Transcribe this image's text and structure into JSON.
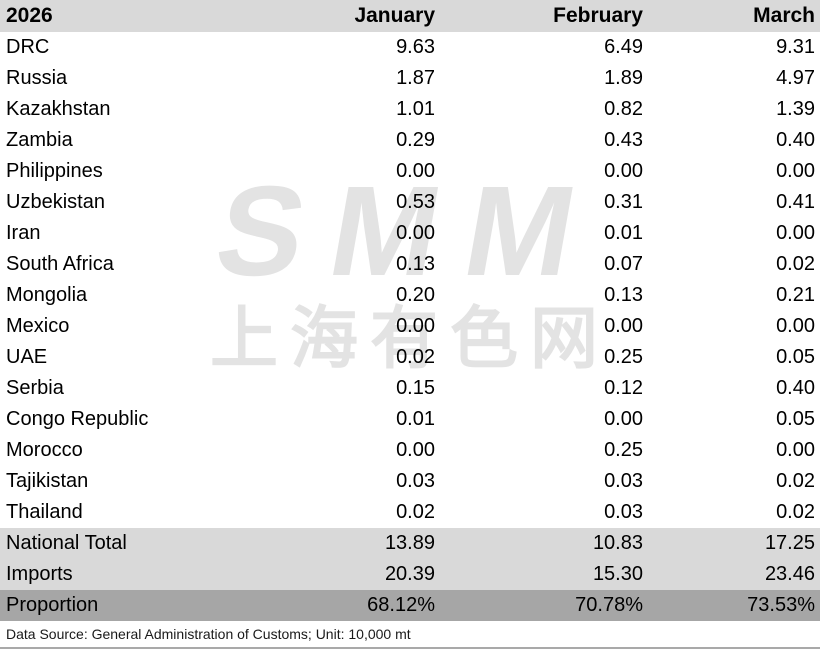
{
  "table": {
    "year": "2026",
    "columns": [
      "January",
      "February",
      "March"
    ],
    "rows": [
      {
        "label": "DRC",
        "values": [
          "9.63",
          "6.49",
          "9.31"
        ],
        "kind": "data"
      },
      {
        "label": "Russia",
        "values": [
          "1.87",
          "1.89",
          "4.97"
        ],
        "kind": "data"
      },
      {
        "label": "Kazakhstan",
        "values": [
          "1.01",
          "0.82",
          "1.39"
        ],
        "kind": "data"
      },
      {
        "label": "Zambia",
        "values": [
          "0.29",
          "0.43",
          "0.40"
        ],
        "kind": "data"
      },
      {
        "label": "Philippines",
        "values": [
          "0.00",
          "0.00",
          "0.00"
        ],
        "kind": "data"
      },
      {
        "label": "Uzbekistan",
        "values": [
          "0.53",
          "0.31",
          "0.41"
        ],
        "kind": "data"
      },
      {
        "label": "Iran",
        "values": [
          "0.00",
          "0.01",
          "0.00"
        ],
        "kind": "data"
      },
      {
        "label": "South Africa",
        "values": [
          "0.13",
          "0.07",
          "0.02"
        ],
        "kind": "data"
      },
      {
        "label": "Mongolia",
        "values": [
          "0.20",
          "0.13",
          "0.21"
        ],
        "kind": "data"
      },
      {
        "label": "Mexico",
        "values": [
          "0.00",
          "0.00",
          "0.00"
        ],
        "kind": "data"
      },
      {
        "label": "UAE",
        "values": [
          "0.02",
          "0.25",
          "0.05"
        ],
        "kind": "data"
      },
      {
        "label": "Serbia",
        "values": [
          "0.15",
          "0.12",
          "0.40"
        ],
        "kind": "data"
      },
      {
        "label": "Congo Republic",
        "values": [
          "0.01",
          "0.00",
          "0.05"
        ],
        "kind": "data"
      },
      {
        "label": "Morocco",
        "values": [
          "0.00",
          "0.25",
          "0.00"
        ],
        "kind": "data"
      },
      {
        "label": "Tajikistan",
        "values": [
          "0.03",
          "0.03",
          "0.02"
        ],
        "kind": "data"
      },
      {
        "label": "Thailand",
        "values": [
          "0.02",
          "0.03",
          "0.02"
        ],
        "kind": "data"
      },
      {
        "label": "National Total",
        "values": [
          "13.89",
          "10.83",
          "17.25"
        ],
        "kind": "summary"
      },
      {
        "label": "Imports",
        "values": [
          "20.39",
          "15.30",
          "23.46"
        ],
        "kind": "summary"
      },
      {
        "label": "Proportion",
        "values": [
          "68.12%",
          "70.78%",
          "73.53%"
        ],
        "kind": "proportion"
      }
    ]
  },
  "watermark": {
    "logo": "SMM",
    "text": "上海有色网"
  },
  "footer": {
    "text": "Data Source: General Administration of Customs; Unit: 10,000 mt"
  },
  "colors": {
    "header_bg": "#d9d9d9",
    "summary_bg": "#d9d9d9",
    "proportion_bg": "#a6a6a6",
    "watermark": "#e3e3e3",
    "text": "#000000",
    "bottom_border": "#a9a9a9"
  },
  "chart_data": {
    "type": "table",
    "title": "2026",
    "categories": [
      "January",
      "February",
      "March"
    ],
    "series": [
      {
        "name": "DRC",
        "values": [
          9.63,
          6.49,
          9.31
        ]
      },
      {
        "name": "Russia",
        "values": [
          1.87,
          1.89,
          4.97
        ]
      },
      {
        "name": "Kazakhstan",
        "values": [
          1.01,
          0.82,
          1.39
        ]
      },
      {
        "name": "Zambia",
        "values": [
          0.29,
          0.43,
          0.4
        ]
      },
      {
        "name": "Philippines",
        "values": [
          0.0,
          0.0,
          0.0
        ]
      },
      {
        "name": "Uzbekistan",
        "values": [
          0.53,
          0.31,
          0.41
        ]
      },
      {
        "name": "Iran",
        "values": [
          0.0,
          0.01,
          0.0
        ]
      },
      {
        "name": "South Africa",
        "values": [
          0.13,
          0.07,
          0.02
        ]
      },
      {
        "name": "Mongolia",
        "values": [
          0.2,
          0.13,
          0.21
        ]
      },
      {
        "name": "Mexico",
        "values": [
          0.0,
          0.0,
          0.0
        ]
      },
      {
        "name": "UAE",
        "values": [
          0.02,
          0.25,
          0.05
        ]
      },
      {
        "name": "Serbia",
        "values": [
          0.15,
          0.12,
          0.4
        ]
      },
      {
        "name": "Congo Republic",
        "values": [
          0.01,
          0.0,
          0.05
        ]
      },
      {
        "name": "Morocco",
        "values": [
          0.0,
          0.25,
          0.0
        ]
      },
      {
        "name": "Tajikistan",
        "values": [
          0.03,
          0.03,
          0.02
        ]
      },
      {
        "name": "Thailand",
        "values": [
          0.02,
          0.03,
          0.02
        ]
      },
      {
        "name": "National Total",
        "values": [
          13.89,
          10.83,
          17.25
        ]
      },
      {
        "name": "Imports",
        "values": [
          20.39,
          15.3,
          23.46
        ]
      },
      {
        "name": "Proportion (%)",
        "values": [
          68.12,
          70.78,
          73.53
        ]
      }
    ],
    "note": "Data Source: General Administration of Customs; Unit: 10,000 mt"
  }
}
